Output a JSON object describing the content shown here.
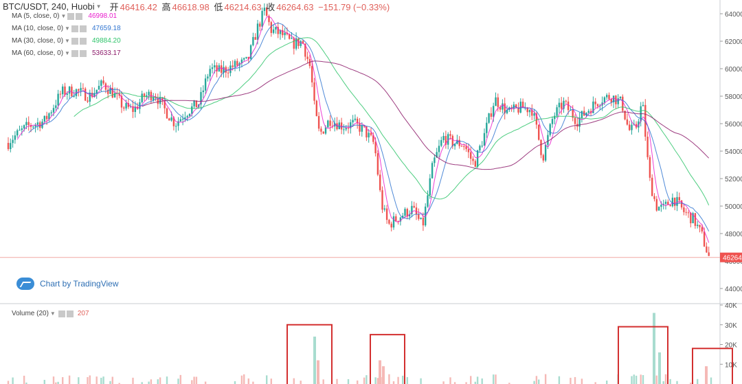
{
  "header": {
    "symbol": "BTC/USDT, 240, Huobi",
    "open_label": "开",
    "open": "46416.42",
    "high_label": "高",
    "high": "46618.98",
    "low_label": "低",
    "low": "46214.63",
    "close_label": "收",
    "close": "46264.63",
    "change": "−151.79 (−0.33%)"
  },
  "indicators": [
    {
      "label": "MA (5, close, 0)",
      "value": "46998.01",
      "color": "#e91fcd"
    },
    {
      "label": "MA (10, close, 0)",
      "value": "47659.18",
      "color": "#2f74d0"
    },
    {
      "label": "MA (30, close, 0)",
      "value": "49884.20",
      "color": "#2ec46a"
    },
    {
      "label": "MA (60, close, 0)",
      "value": "53633.17",
      "color": "#8c1a6a"
    }
  ],
  "volume": {
    "label": "Volume (20)",
    "value": "207"
  },
  "branding": {
    "text": "Chart by TradingView"
  },
  "colors": {
    "up": "#26a69a",
    "down": "#ef5350",
    "highlight_box": "#d32f2f"
  },
  "chart_data": {
    "type": "candlestick",
    "price_axis": {
      "range": [
        43000,
        65000
      ],
      "ticks": [
        44000,
        46000,
        48000,
        50000,
        52000,
        54000,
        56000,
        58000,
        60000,
        62000,
        64000
      ],
      "tick_labels": [
        "44000",
        "46000",
        "48000",
        "50000",
        "52000",
        "54000",
        "56000",
        "58000",
        "60000",
        "62000",
        "64000"
      ]
    },
    "last_price_label": "46264",
    "last_price": 46264,
    "volume_axis": {
      "range": [
        0,
        40000
      ],
      "ticks": [
        10000,
        20000,
        30000,
        40000
      ],
      "tick_labels": [
        "10K",
        "20K",
        "30K",
        "40K"
      ]
    },
    "price_path": [
      [
        0,
        53400
      ],
      [
        14,
        54800
      ],
      [
        40,
        55800
      ],
      [
        65,
        56200
      ],
      [
        90,
        58300
      ],
      [
        110,
        58400
      ],
      [
        130,
        58000
      ],
      [
        150,
        58900
      ],
      [
        165,
        58200
      ],
      [
        180,
        57200
      ],
      [
        195,
        57000
      ],
      [
        210,
        58000
      ],
      [
        225,
        58200
      ],
      [
        240,
        57000
      ],
      [
        255,
        56000
      ],
      [
        270,
        56800
      ],
      [
        290,
        57500
      ],
      [
        305,
        60000
      ],
      [
        320,
        59800
      ],
      [
        340,
        60200
      ],
      [
        360,
        60500
      ],
      [
        375,
        63000
      ],
      [
        385,
        64200
      ],
      [
        395,
        62800
      ],
      [
        410,
        62500
      ],
      [
        425,
        61800
      ],
      [
        440,
        62000
      ],
      [
        452,
        60000
      ],
      [
        458,
        57000
      ],
      [
        465,
        55200
      ],
      [
        480,
        56300
      ],
      [
        500,
        55800
      ],
      [
        515,
        56000
      ],
      [
        530,
        55500
      ],
      [
        545,
        54500
      ],
      [
        555,
        50200
      ],
      [
        565,
        48600
      ],
      [
        580,
        49200
      ],
      [
        600,
        49800
      ],
      [
        615,
        48500
      ],
      [
        630,
        53000
      ],
      [
        645,
        55000
      ],
      [
        660,
        54600
      ],
      [
        675,
        54500
      ],
      [
        690,
        53000
      ],
      [
        705,
        55200
      ],
      [
        720,
        57800
      ],
      [
        740,
        56800
      ],
      [
        760,
        57200
      ],
      [
        775,
        57000
      ],
      [
        790,
        53500
      ],
      [
        805,
        56500
      ],
      [
        820,
        57500
      ],
      [
        840,
        56200
      ],
      [
        860,
        57200
      ],
      [
        875,
        57800
      ],
      [
        890,
        58000
      ],
      [
        905,
        57500
      ],
      [
        915,
        55500
      ],
      [
        925,
        55600
      ],
      [
        935,
        57600
      ],
      [
        945,
        52000
      ],
      [
        955,
        50000
      ],
      [
        965,
        49800
      ],
      [
        980,
        50600
      ],
      [
        995,
        49600
      ],
      [
        1010,
        49000
      ],
      [
        1022,
        47800
      ],
      [
        1032,
        46264
      ]
    ],
    "ma_lines": [
      {
        "name": "MA (5, close, 0)",
        "color": "#e91fcd"
      },
      {
        "name": "MA (10, close, 0)",
        "color": "#2f74d0"
      },
      {
        "name": "MA (30, close, 0)",
        "color": "#2ec46a"
      },
      {
        "name": "MA (60, close, 0)",
        "color": "#8c1a6a"
      }
    ],
    "volume_spikes": [
      {
        "x": 458,
        "value": 24000
      },
      {
        "x": 463,
        "value": 12000
      },
      {
        "x": 553,
        "value": 12000
      },
      {
        "x": 558,
        "value": 9000
      },
      {
        "x": 952,
        "value": 36000
      },
      {
        "x": 960,
        "value": 16000
      },
      {
        "x": 1028,
        "value": 9000
      }
    ],
    "highlight_ranges": [
      {
        "from": 418,
        "to": 483,
        "top": 30000
      },
      {
        "from": 539,
        "to": 589,
        "top": 25000
      },
      {
        "from": 900,
        "to": 972,
        "top": 29000
      },
      {
        "from": 1008,
        "to": 1066,
        "top": 18000
      }
    ]
  }
}
